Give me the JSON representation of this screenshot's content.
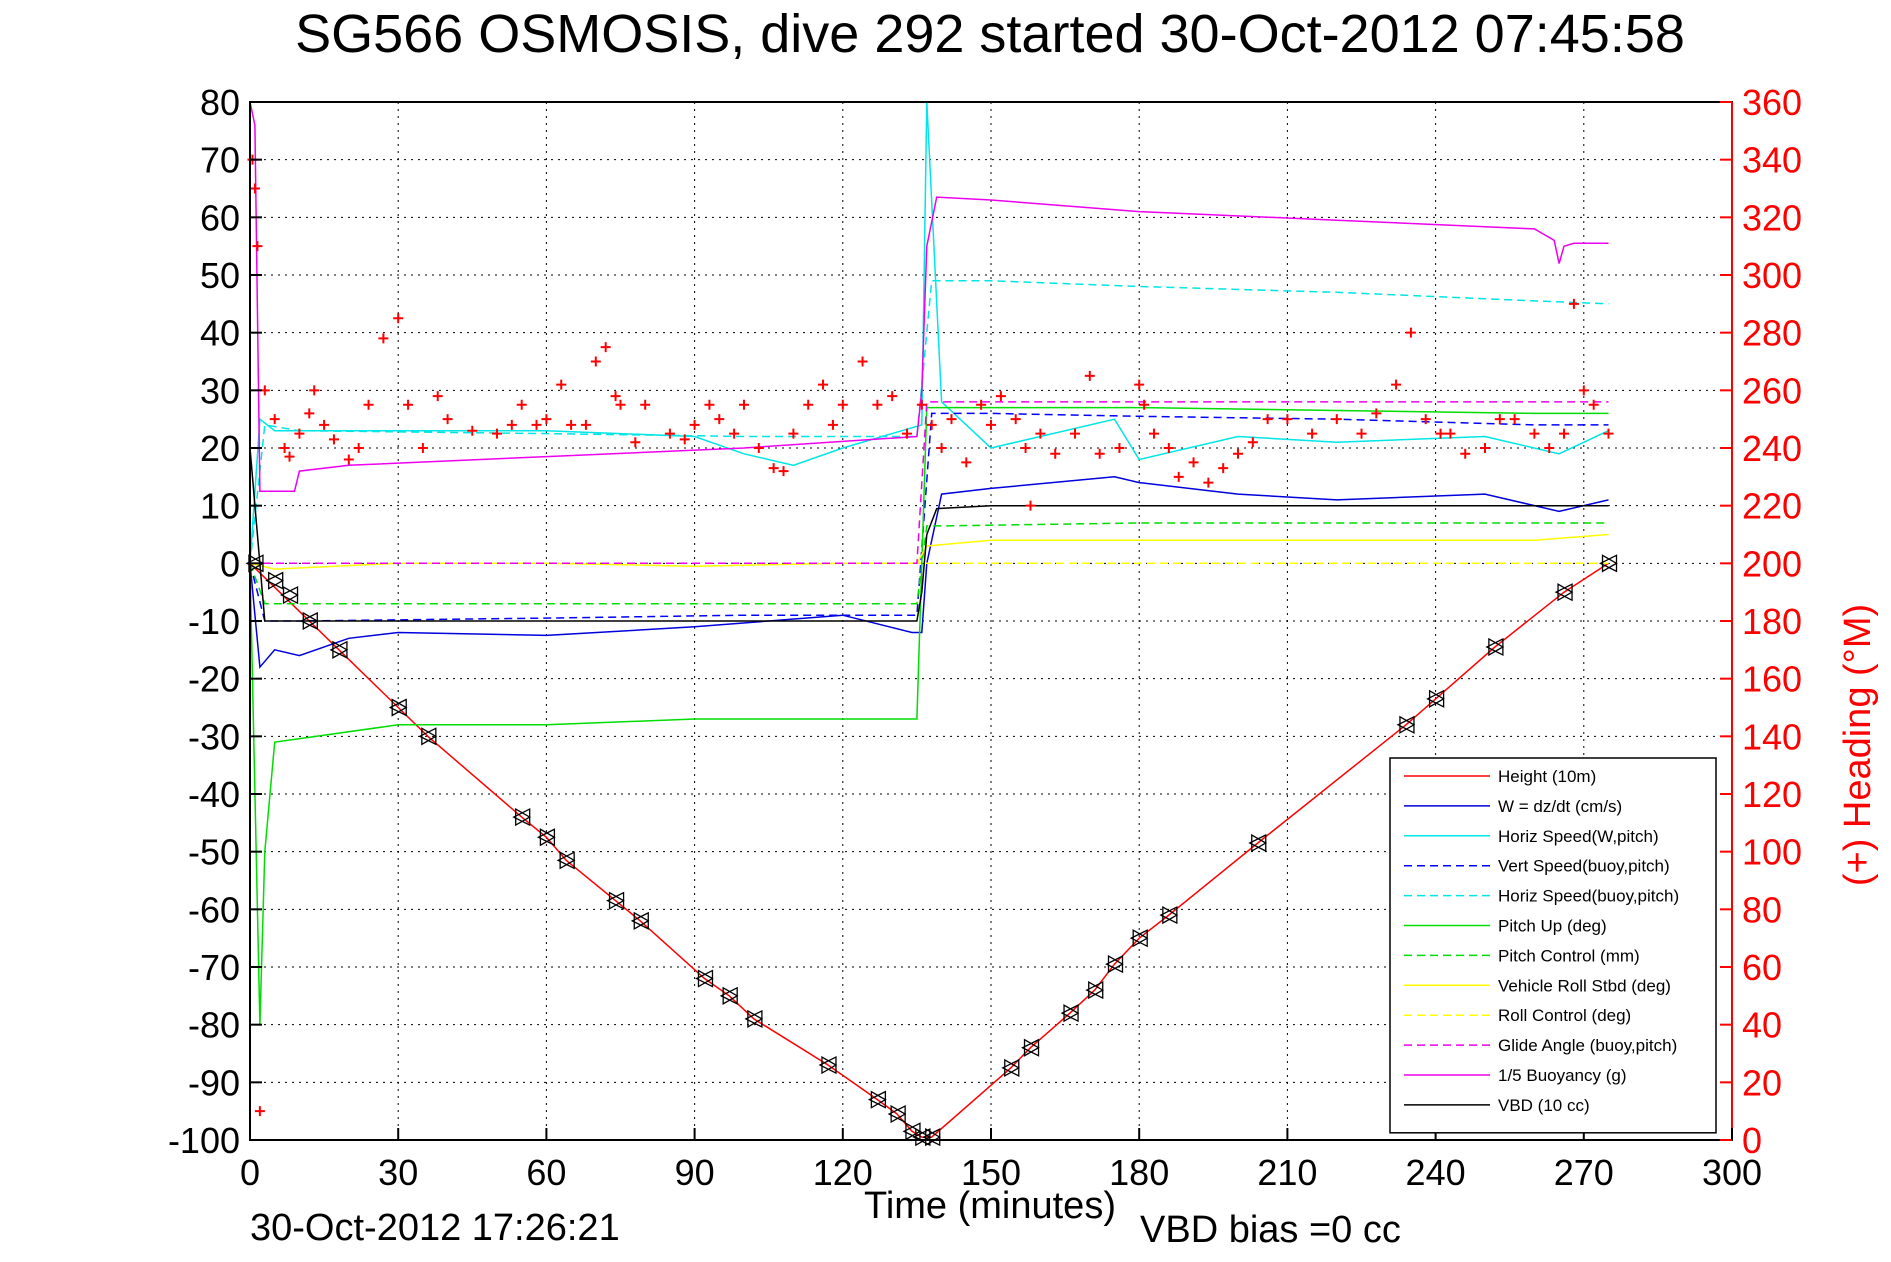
{
  "chart_data": {
    "type": "line",
    "title": "SG566 OSMOSIS, dive 292 started 30-Oct-2012 07:45:58",
    "xlabel": "Time (minutes)",
    "ylabel": "",
    "y2label": "(+) Heading (°M)",
    "xlim": [
      0,
      300
    ],
    "ylim": [
      -100,
      80
    ],
    "y2lim": [
      0,
      360
    ],
    "xticks": [
      "0",
      "30",
      "60",
      "90",
      "120",
      "150",
      "180",
      "210",
      "240",
      "270",
      "300"
    ],
    "yticks": [
      "80",
      "70",
      "60",
      "50",
      "40",
      "30",
      "20",
      "10",
      "0",
      "-10",
      "-20",
      "-30",
      "-40",
      "-50",
      "-60",
      "-70",
      "-80",
      "-90",
      "-100"
    ],
    "y2ticks": [
      "360",
      "340",
      "320",
      "300",
      "280",
      "260",
      "240",
      "220",
      "200",
      "180",
      "160",
      "140",
      "120",
      "100",
      "80",
      "60",
      "40",
      "20",
      "0"
    ],
    "grid": true,
    "legend_position": "bottom-right",
    "footer_date": "30-Oct-2012 17:26:21",
    "footer_note": "VBD bias =0 cc",
    "series": [
      {
        "name": "Height (10m)",
        "color": "#ff0000",
        "style": "solid",
        "x": [
          0,
          18,
          30,
          36,
          55,
          60,
          64,
          74,
          79,
          92,
          97,
          102,
          117,
          127,
          131,
          134,
          136,
          138,
          154,
          158,
          166,
          171,
          175,
          180,
          186,
          204,
          234,
          240,
          252,
          266,
          275
        ],
        "y": [
          0,
          -15,
          -25,
          -30,
          -44,
          -47.5,
          -51.5,
          -58.5,
          -62,
          -72,
          -75,
          -79,
          -87,
          -93,
          -95.5,
          -98.5,
          -99.5,
          -99.5,
          -87.5,
          -84,
          -78,
          -74,
          -69.5,
          -65,
          -61,
          -48.5,
          -28,
          -23.5,
          -14.5,
          -5,
          0
        ]
      },
      {
        "name": "W = dz/dt (cm/s)",
        "color": "#0000dd",
        "style": "solid",
        "x": [
          0,
          2,
          5,
          10,
          20,
          30,
          60,
          90,
          120,
          134,
          136,
          137,
          140,
          150,
          175,
          180,
          200,
          220,
          250,
          265,
          275
        ],
        "y": [
          0,
          -18,
          -15,
          -16,
          -13,
          -12,
          -12.5,
          -11,
          -9,
          -12,
          -12,
          0,
          12,
          13,
          15,
          14,
          12,
          11,
          12,
          9,
          11
        ]
      },
      {
        "name": "Horiz Speed(W,pitch)",
        "color": "#00e5e5",
        "style": "solid",
        "x": [
          0,
          2,
          5,
          30,
          60,
          90,
          100,
          110,
          120,
          136,
          137,
          140,
          150,
          175,
          180,
          200,
          220,
          250,
          265,
          275
        ],
        "y": [
          0,
          25,
          23,
          23,
          23,
          22,
          19,
          17,
          20,
          24,
          80,
          28,
          20,
          25,
          18,
          22,
          21,
          22,
          19,
          23
        ]
      },
      {
        "name": "Vert Speed(buoy,pitch)",
        "color": "#0000ff",
        "style": "dashed",
        "x": [
          0,
          3,
          10,
          60,
          100,
          135,
          138,
          150,
          180,
          220,
          260,
          275
        ],
        "y": [
          0,
          -10,
          -10,
          -9.5,
          -9,
          -9,
          26,
          26,
          25.5,
          25,
          24,
          24
        ]
      },
      {
        "name": "Horiz Speed(buoy,pitch)",
        "color": "#00e5e5",
        "style": "dashed",
        "x": [
          0,
          3,
          10,
          60,
          100,
          135,
          138,
          150,
          180,
          220,
          260,
          275
        ],
        "y": [
          0,
          24,
          23,
          22.5,
          22,
          22,
          49,
          49,
          48,
          47,
          45.5,
          45
        ]
      },
      {
        "name": "Pitch Up (deg)",
        "color": "#00dd00",
        "style": "solid",
        "x": [
          0,
          2,
          3,
          5,
          30,
          60,
          90,
          120,
          135,
          136,
          137,
          140,
          150,
          180,
          220,
          260,
          275
        ],
        "y": [
          0,
          -80,
          -50,
          -31,
          -28,
          -28,
          -27,
          -27,
          -27,
          0,
          27,
          27,
          27,
          27,
          26.5,
          26,
          26
        ]
      },
      {
        "name": "Pitch Control (mm)",
        "color": "#00dd00",
        "style": "dashed",
        "x": [
          0,
          3,
          10,
          60,
          100,
          135,
          137,
          140,
          180,
          220,
          260,
          275
        ],
        "y": [
          0,
          -7,
          -7,
          -7,
          -7,
          -7,
          6.5,
          6.5,
          7,
          7,
          7,
          7
        ]
      },
      {
        "name": "Vehicle Roll Stbd (deg)",
        "color": "#ffff00",
        "style": "solid",
        "x": [
          0,
          5,
          30,
          60,
          90,
          120,
          135,
          137,
          150,
          180,
          220,
          260,
          275
        ],
        "y": [
          0,
          -1,
          0,
          0,
          -0.5,
          0,
          0,
          3,
          4,
          4,
          4,
          4,
          5
        ]
      },
      {
        "name": "Roll Control (deg)",
        "color": "#ffff00",
        "style": "dashed",
        "x": [
          0,
          5,
          30,
          60,
          90,
          120,
          135,
          137,
          150,
          180,
          220,
          260,
          275
        ],
        "y": [
          0,
          0,
          0,
          0,
          0,
          0,
          0,
          0,
          0,
          0,
          0,
          0,
          0
        ]
      },
      {
        "name": "Glide Angle (buoy,pitch)",
        "color": "#ee00ee",
        "style": "dashed",
        "x": [
          0,
          3,
          10,
          60,
          100,
          135,
          137,
          140,
          180,
          220,
          260,
          275
        ],
        "y": [
          0,
          0,
          0,
          0,
          0,
          0,
          28,
          28,
          28,
          28,
          28,
          28
        ]
      },
      {
        "name": "1/5 Buoyancy (g)",
        "color": "#ee00ee",
        "style": "solid",
        "x": [
          0,
          1,
          2,
          9,
          10,
          20,
          60,
          100,
          135,
          136,
          137,
          139,
          150,
          180,
          220,
          260,
          264,
          265,
          266,
          268,
          275
        ],
        "y": [
          80,
          76,
          12.5,
          12.5,
          16,
          17,
          18.5,
          20,
          22,
          30,
          55,
          63.5,
          63,
          61,
          59.5,
          58,
          56,
          52,
          55,
          55.5,
          55.5
        ]
      },
      {
        "name": "VBD (10 cc)",
        "color": "#000000",
        "style": "solid",
        "x": [
          0,
          3,
          10,
          60,
          100,
          135,
          136,
          137,
          139,
          150,
          180,
          220,
          260,
          275
        ],
        "y": [
          20,
          -10,
          -10,
          -10,
          -10,
          -10,
          -5,
          5,
          9.5,
          10,
          10,
          10,
          10,
          10
        ]
      },
      {
        "name": "Heading",
        "color": "#ff0000",
        "style": "markers-plus",
        "axis": "right",
        "x": [
          0.5,
          1,
          1.5,
          2,
          3,
          5,
          7,
          8,
          10,
          12,
          13,
          15,
          17,
          20,
          22,
          24,
          27,
          30,
          32,
          35,
          38,
          40,
          45,
          50,
          53,
          55,
          58,
          60,
          63,
          65,
          68,
          70,
          72,
          74,
          75,
          78,
          80,
          85,
          88,
          90,
          93,
          95,
          98,
          100,
          103,
          106,
          108,
          110,
          113,
          116,
          118,
          120,
          124,
          127,
          130,
          133,
          136,
          138,
          140,
          142,
          145,
          148,
          150,
          152,
          155,
          157,
          158,
          160,
          163,
          167,
          170,
          172,
          176,
          180,
          181,
          183,
          186,
          188,
          191,
          194,
          197,
          200,
          203,
          206,
          210,
          215,
          220,
          225,
          228,
          232,
          235,
          238,
          241,
          243,
          246,
          250,
          253,
          256,
          260,
          263,
          266,
          268,
          270,
          272,
          275
        ],
        "y": [
          340,
          330,
          310,
          10,
          260,
          250,
          240,
          237,
          245,
          252,
          260,
          248,
          243,
          236,
          240,
          255,
          278,
          285,
          255,
          240,
          258,
          250,
          246,
          245,
          248,
          255,
          248,
          250,
          262,
          248,
          248,
          270,
          275,
          258,
          255,
          242,
          255,
          245,
          243,
          248,
          255,
          250,
          245,
          255,
          240,
          233,
          232,
          245,
          255,
          262,
          248,
          255,
          270,
          255,
          258,
          245,
          255,
          248,
          240,
          250,
          235,
          255,
          248,
          258,
          250,
          240,
          220,
          245,
          238,
          245,
          265,
          238,
          240,
          262,
          255,
          245,
          240,
          230,
          235,
          228,
          233,
          238,
          242,
          250,
          250,
          245,
          250,
          245,
          252,
          262,
          280,
          250,
          245,
          245,
          238,
          240,
          250,
          250,
          245,
          240,
          245,
          290,
          260,
          255,
          245
        ]
      },
      {
        "name": "Depth markers",
        "color": "#000000",
        "style": "markers-triangle",
        "x": [
          1,
          5,
          8,
          12,
          18,
          30,
          36,
          55,
          60,
          64,
          74,
          79,
          92,
          97,
          102,
          117,
          127,
          131,
          134,
          136,
          138,
          154,
          158,
          166,
          171,
          175,
          180,
          186,
          204,
          234,
          240,
          252,
          266,
          275
        ],
        "y": [
          0,
          -3,
          -5.5,
          -10,
          -15,
          -25,
          -30,
          -44,
          -47.5,
          -51.5,
          -58.5,
          -62,
          -72,
          -75,
          -79,
          -87,
          -93,
          -95.5,
          -98.5,
          -99.5,
          -99.5,
          -87.5,
          -84,
          -78,
          -74,
          -69.5,
          -65,
          -61,
          -48.5,
          -28,
          -23.5,
          -14.5,
          -5,
          0
        ]
      }
    ]
  }
}
